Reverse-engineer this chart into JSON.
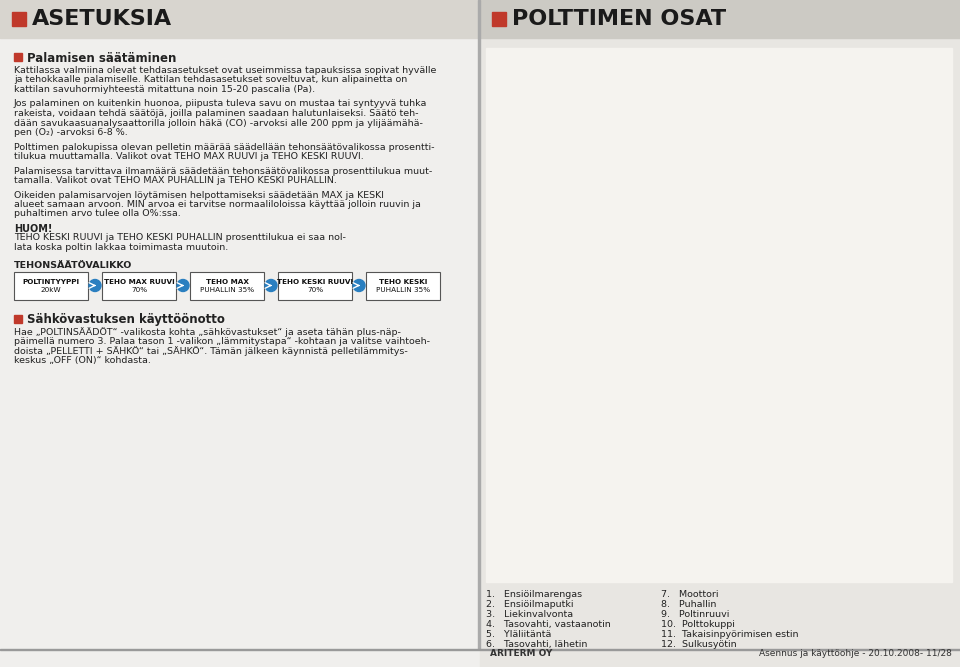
{
  "bg_color": "#f0efed",
  "right_bg": "#e8e6e2",
  "header_bar_left": "#d8d5cf",
  "header_bar_right": "#cccac4",
  "header_red": "#c0392b",
  "header_text_color": "#1a1a1a",
  "body_text_color": "#222222",
  "header_left_title": "ASETUKSIA",
  "header_right_title": "POLTTIMEN OSAT",
  "section1_title": "Palamisen säätäminen",
  "para1_lines": [
    "Kattilassa valmiina olevat tehdasasetukset ovat useimmissa tapauksissa sopivat hyvälle",
    "ja tehokkaalle palamiselle. Kattilan tehdasasetukset soveltuvat, kun alipainetta on",
    "kattilan savuhormiyhteestä mitattuna noin 15-20 pascalia (Pa)."
  ],
  "para2_lines": [
    "Jos palaminen on kuitenkin huonoa, piipusta tuleva savu on mustaa tai syntyyvä tuhka",
    "rakeista, voidaan tehdä säätöjä, joilla palaminen saadaan halutunlaiseksi. Säätö teh-",
    "dään savukaasuanalysaattorilla jolloin häkä (CO) -arvoksi alle 200 ppm ja ylijäämähä-",
    "pen (O₂) -arvoksi 6-8 %."
  ],
  "para3_lines": [
    "Polttimen palokupissa olevan pelletin määrää säädellään tehonsäätövalikossa prosentti-",
    "tilukua muuttamalla. Valikot ovat TEHO MAX RUUVI ja TEHO KESKI RUUVI."
  ],
  "para4_lines": [
    "Palamisessa tarvittava ilmamäärä säädetään tehonsäätövalikossa prosenttilukua muut-",
    "tamalla. Valikot ovat TEHO MAX PUHALLIN ja TEHO KESKI PUHALLIN."
  ],
  "para5_lines": [
    "Oikeiden palamisarvojen löytämisen helpottamiseksi säädetään MAX ja KESKI",
    "alueet samaan arvoon. MIN arvoa ei tarvitse normaaliloloissa käyttää jolloin ruuvin ja",
    "puhaltimen arvo tulee olla O%:ssa."
  ],
  "huom_title": "HUOM!",
  "huom_lines": [
    "TEHO KESKI RUUVI ja TEHO KESKI PUHALLIN prosenttilukua ei saa nol-",
    "lata koska poltin lakkaa toimimasta muutoin."
  ],
  "tehon_title": "TEHONSÄÄTÖVALIKKO",
  "tehon_boxes": [
    "POLTINTYYPPI\n20kW",
    "TEHO MAX RUUVI\n70%",
    "TEHO MAX\nPUHALLIN 35%",
    "TEHO KESKI RUUVI\n70%",
    "TEHO KESKI\nPUHALLIN 35%"
  ],
  "section2_title": "Sähkövastuksen käyttöönotto",
  "sec2_lines": [
    "Hae „POLTINSÄÄDÖT“ -valikosta kohta „sähkövastukset“ ja aseta tähän plus-näp-",
    "päimellä numero 3. Palaa tason 1 -valikon „lämmitystapa“ -kohtaan ja valitse vaihtoeh-",
    "doista „PELLETTI + SÄHKÖ“ tai „SÄHKÖ“. Tämän jälkeen käynnistä pelletilämmitys-",
    "keskus „OFF (ON)“ kohdasta."
  ],
  "parts_list_left": [
    "1.   Ensiöilmarengas",
    "2.   Ensiöilmaputki",
    "3.   Liekinvalvonta",
    "4.   Tasovahti, vastaanotin",
    "5.   Yläliitäntä",
    "6.   Tasovahti, lähetin"
  ],
  "parts_list_right": [
    "7.   Moottori",
    "8.   Puhallin",
    "9.   Poltinruuvi",
    "10.  Polttokuppi",
    "11.  Takaisinpyörimisen estin",
    "12.  Sulkusyötin"
  ],
  "footer_company": "ARITERM OY",
  "footer_info": "Asennus ja käyttöohje - 20.10.2008- 11/28",
  "arrow_color": "#2a7fc0",
  "box_edge_color": "#555555",
  "divider_color": "#aaaaaa"
}
